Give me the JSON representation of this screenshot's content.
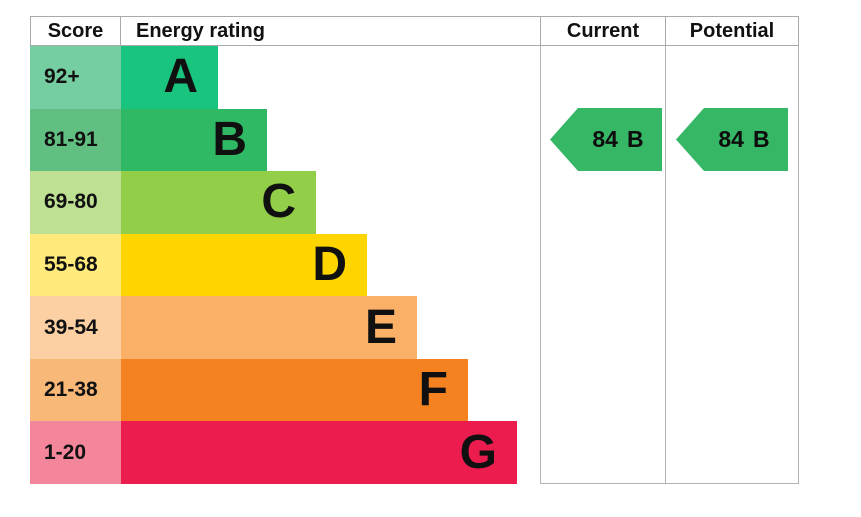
{
  "header": {
    "score": "Score",
    "energy_rating": "Energy rating",
    "current": "Current",
    "potential": "Potential"
  },
  "bands": [
    {
      "score_range": "92+",
      "letter": "A",
      "band_color": "#19c57e",
      "score_color": "#75cda2"
    },
    {
      "score_range": "81-91",
      "letter": "B",
      "band_color": "#2fb964",
      "score_color": "#61bf82"
    },
    {
      "score_range": "69-80",
      "letter": "C",
      "band_color": "#92ce48",
      "score_color": "#bde092"
    },
    {
      "score_range": "55-68",
      "letter": "D",
      "band_color": "#ffd500",
      "score_color": "#ffea7b"
    },
    {
      "score_range": "39-54",
      "letter": "E",
      "band_color": "#fbb068",
      "score_color": "#fcd0a2"
    },
    {
      "score_range": "21-38",
      "letter": "F",
      "band_color": "#f58220",
      "score_color": "#f8b878"
    },
    {
      "score_range": "1-20",
      "letter": "G",
      "band_color": "#ed1c4e",
      "score_color": "#f4869c"
    }
  ],
  "current": {
    "value": "84",
    "letter": "B",
    "arrow_color": "#35b766"
  },
  "potential": {
    "value": "84",
    "letter": "B",
    "arrow_color": "#35b766"
  },
  "border_color": "#b3b3b3",
  "chart_data": {
    "type": "bar",
    "title": "Energy rating",
    "categories": [
      "A",
      "B",
      "C",
      "D",
      "E",
      "F",
      "G"
    ],
    "score_ranges": [
      "92+",
      "81-91",
      "69-80",
      "55-68",
      "39-54",
      "21-38",
      "1-20"
    ],
    "band_colors": [
      "#19c57e",
      "#2fb964",
      "#92ce48",
      "#ffd500",
      "#fbb068",
      "#f58220",
      "#ed1c4e"
    ],
    "bar_relative_lengths": [
      1,
      1.5,
      2,
      2.5,
      3,
      3.5,
      4
    ],
    "columns": [
      "Score",
      "Energy rating",
      "Current",
      "Potential"
    ],
    "current": {
      "value": 84,
      "band": "B"
    },
    "potential": {
      "value": 84,
      "band": "B"
    },
    "legend_position": "none",
    "grid": false,
    "orientation": "horizontal"
  }
}
